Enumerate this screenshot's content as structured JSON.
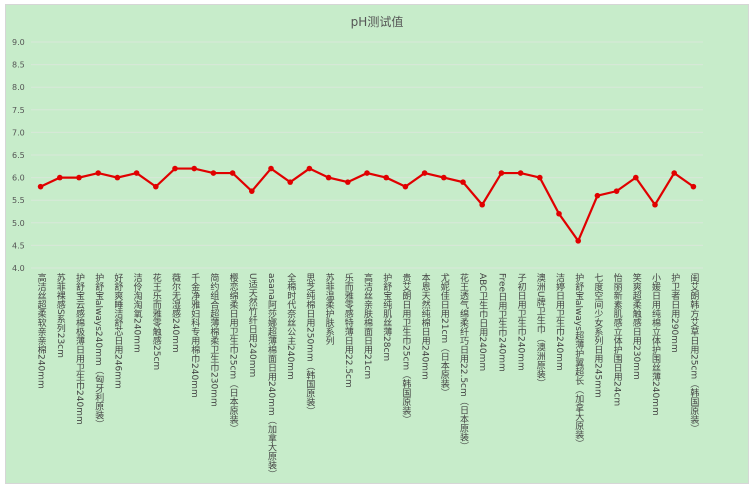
{
  "chart_data": {
    "type": "line",
    "title": "pH测试值",
    "xlabel": "",
    "ylabel": "",
    "ylim": [
      4.0,
      9.0
    ],
    "yticks": [
      "4.0",
      "4.5",
      "5.0",
      "5.5",
      "6.0",
      "6.5",
      "7.0",
      "7.5",
      "8.0",
      "8.5",
      "9.0"
    ],
    "grid": true,
    "legend": "none",
    "line_color": "#e00000",
    "background_color": "#c7ecca",
    "categories": [
      "高洁丝超柔软亲亲棉240mm",
      "苏菲裸感S系列23cm",
      "护舒宝云感棉极薄日用卫生巾240mm",
      "护舒宝always240mm（匈牙利原装）",
      "好舒爽睡洁舒芯日用246mm",
      "洁伶淘淘氧240mm",
      "花王乐而雅零触感25cm",
      "薇尔无湿感240mm",
      "千金净雅妇科专用棉巾240mm",
      "简约组合超薄棉柔卫生巾230mm",
      "樱恋绵柔日用卫生巾25cm（日本原装）",
      "U适天然竹纤日用240mm",
      "asana阿莎娜超薄棉面日用240mm（加拿大原装）",
      "全棉时代奈丝公主240mm",
      "思芝纯棉日用250mm（韩国原装）",
      "苏菲温柔护肤系列",
      "乐而雅零感特薄日用22.5cm",
      "高洁丝亲肤棉面日用21cm",
      "护舒宝纯肌丝薄28cm",
      "贵艾朗日用卫生巾25cm（韩国原装）",
      "本恩天然纯棉日用240mm",
      "尤妮佳日用21cm（日本原装）",
      "花王透气绵柔纤巧日用22.5cm（日本原装）",
      "ABC卫生巾日用240mm",
      "Free日用卫生巾240mm",
      "子初日用卫生巾240mm",
      "澳洲U牌卫生巾（澳洲原装）",
      "洁婷日用卫生巾240mm",
      "护舒宝always超薄护翼超长（加拿大原装）",
      "七度空间少女系列日用245mm",
      "怡丽新素肌感立体护围日用24cm",
      "笑爽超柔触感日用230mm",
      "小媛日用纯棉立体护围丝薄240mm",
      "护卫者日用290mm",
      "闺艾朗韩方艾草日用25cm（韩国原装）"
    ],
    "values": [
      5.8,
      6.0,
      6.0,
      6.1,
      6.0,
      6.1,
      5.8,
      6.2,
      6.2,
      6.1,
      6.1,
      5.7,
      6.2,
      5.9,
      6.2,
      6.0,
      5.9,
      6.1,
      6.0,
      5.8,
      6.1,
      6.0,
      5.9,
      5.4,
      6.1,
      6.1,
      6.0,
      5.2,
      4.6,
      5.6,
      5.7,
      6.0,
      5.4,
      6.1,
      5.8
    ]
  }
}
